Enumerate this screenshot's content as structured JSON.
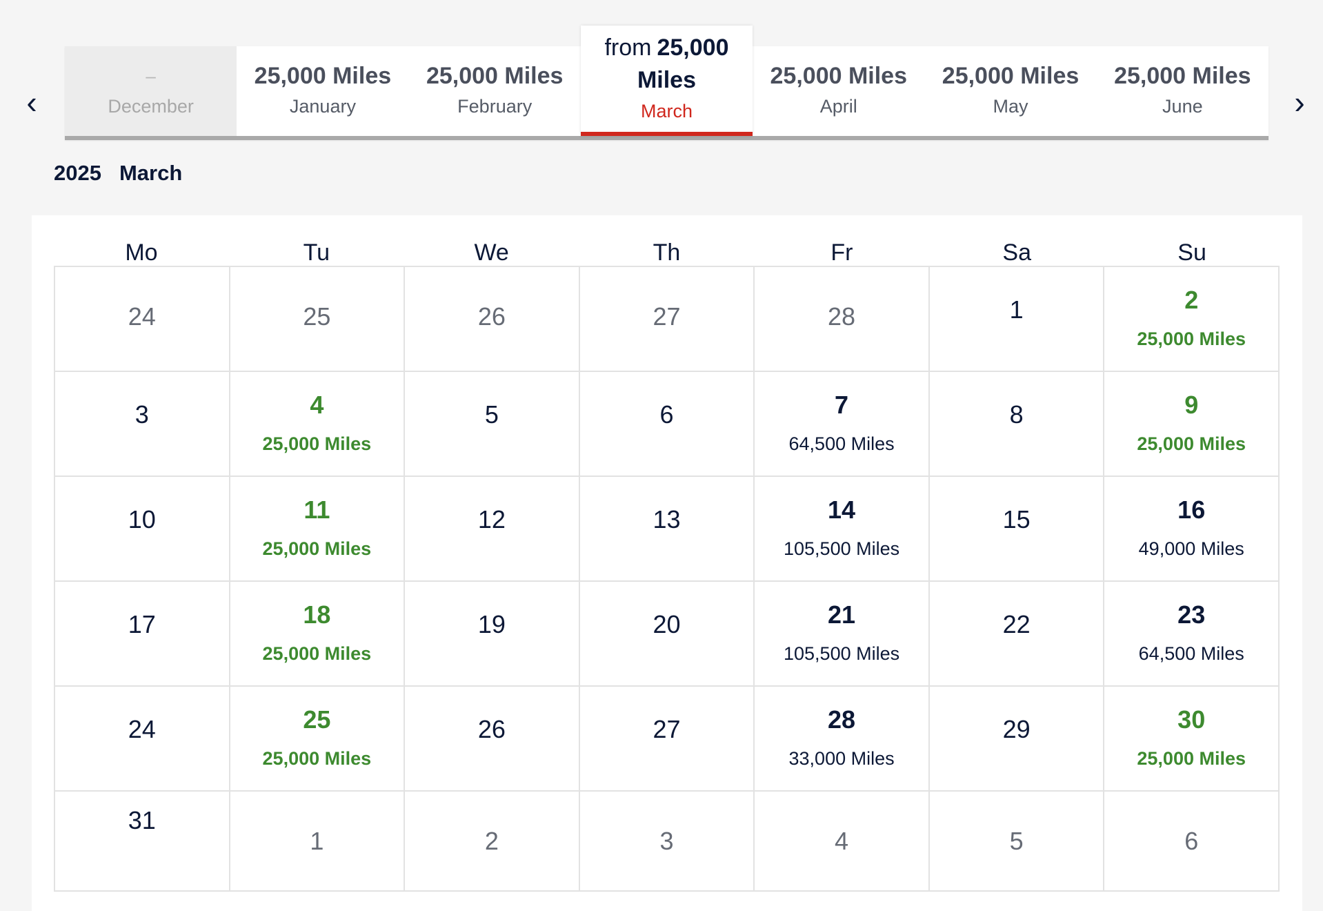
{
  "nav": {
    "prev_glyph": "‹",
    "next_glyph": "›"
  },
  "months": [
    {
      "price": "–",
      "name": "December",
      "state": "disabled"
    },
    {
      "price": "25,000 Miles",
      "name": "January",
      "state": "normal"
    },
    {
      "price": "25,000 Miles",
      "name": "February",
      "state": "normal"
    },
    {
      "from": "from",
      "price": "25,000",
      "miles": "Miles",
      "name": "March",
      "state": "active"
    },
    {
      "price": "25,000 Miles",
      "name": "April",
      "state": "normal"
    },
    {
      "price": "25,000 Miles",
      "name": "May",
      "state": "normal"
    },
    {
      "price": "25,000 Miles",
      "name": "June",
      "state": "normal"
    }
  ],
  "heading": {
    "year": "2025",
    "month": "March"
  },
  "weekdays": [
    "Mo",
    "Tu",
    "We",
    "Th",
    "Fr",
    "Sa",
    "Su"
  ],
  "weeks": [
    [
      {
        "day": "24",
        "type": "faded"
      },
      {
        "day": "25",
        "type": "faded"
      },
      {
        "day": "26",
        "type": "faded"
      },
      {
        "day": "27",
        "type": "faded"
      },
      {
        "day": "28",
        "type": "faded"
      },
      {
        "day": "1",
        "type": "plain"
      },
      {
        "day": "2",
        "type": "green",
        "miles": "25,000 Miles"
      }
    ],
    [
      {
        "day": "3",
        "type": "plain"
      },
      {
        "day": "4",
        "type": "green",
        "miles": "25,000 Miles"
      },
      {
        "day": "5",
        "type": "plain"
      },
      {
        "day": "6",
        "type": "plain"
      },
      {
        "day": "7",
        "type": "priced",
        "miles": "64,500 Miles"
      },
      {
        "day": "8",
        "type": "plain"
      },
      {
        "day": "9",
        "type": "green",
        "miles": "25,000 Miles"
      }
    ],
    [
      {
        "day": "10",
        "type": "plain"
      },
      {
        "day": "11",
        "type": "green",
        "miles": "25,000 Miles"
      },
      {
        "day": "12",
        "type": "plain"
      },
      {
        "day": "13",
        "type": "plain"
      },
      {
        "day": "14",
        "type": "priced",
        "miles": "105,500 Miles"
      },
      {
        "day": "15",
        "type": "plain"
      },
      {
        "day": "16",
        "type": "priced",
        "miles": "49,000 Miles"
      }
    ],
    [
      {
        "day": "17",
        "type": "plain"
      },
      {
        "day": "18",
        "type": "green",
        "miles": "25,000 Miles"
      },
      {
        "day": "19",
        "type": "plain"
      },
      {
        "day": "20",
        "type": "plain"
      },
      {
        "day": "21",
        "type": "priced",
        "miles": "105,500 Miles"
      },
      {
        "day": "22",
        "type": "plain"
      },
      {
        "day": "23",
        "type": "priced",
        "miles": "64,500 Miles"
      }
    ],
    [
      {
        "day": "24",
        "type": "plain"
      },
      {
        "day": "25",
        "type": "green",
        "miles": "25,000 Miles"
      },
      {
        "day": "26",
        "type": "plain"
      },
      {
        "day": "27",
        "type": "plain"
      },
      {
        "day": "28",
        "type": "priced",
        "miles": "33,000 Miles"
      },
      {
        "day": "29",
        "type": "plain"
      },
      {
        "day": "30",
        "type": "green",
        "miles": "25,000 Miles"
      }
    ],
    [
      {
        "day": "31",
        "type": "plain"
      },
      {
        "day": "1",
        "type": "faded"
      },
      {
        "day": "2",
        "type": "faded"
      },
      {
        "day": "3",
        "type": "faded"
      },
      {
        "day": "4",
        "type": "faded"
      },
      {
        "day": "5",
        "type": "faded"
      },
      {
        "day": "6",
        "type": "faded"
      }
    ]
  ],
  "colors": {
    "accent_red": "#d0271d",
    "lowest_green": "#3d8a2f",
    "navy": "#0c1836"
  }
}
